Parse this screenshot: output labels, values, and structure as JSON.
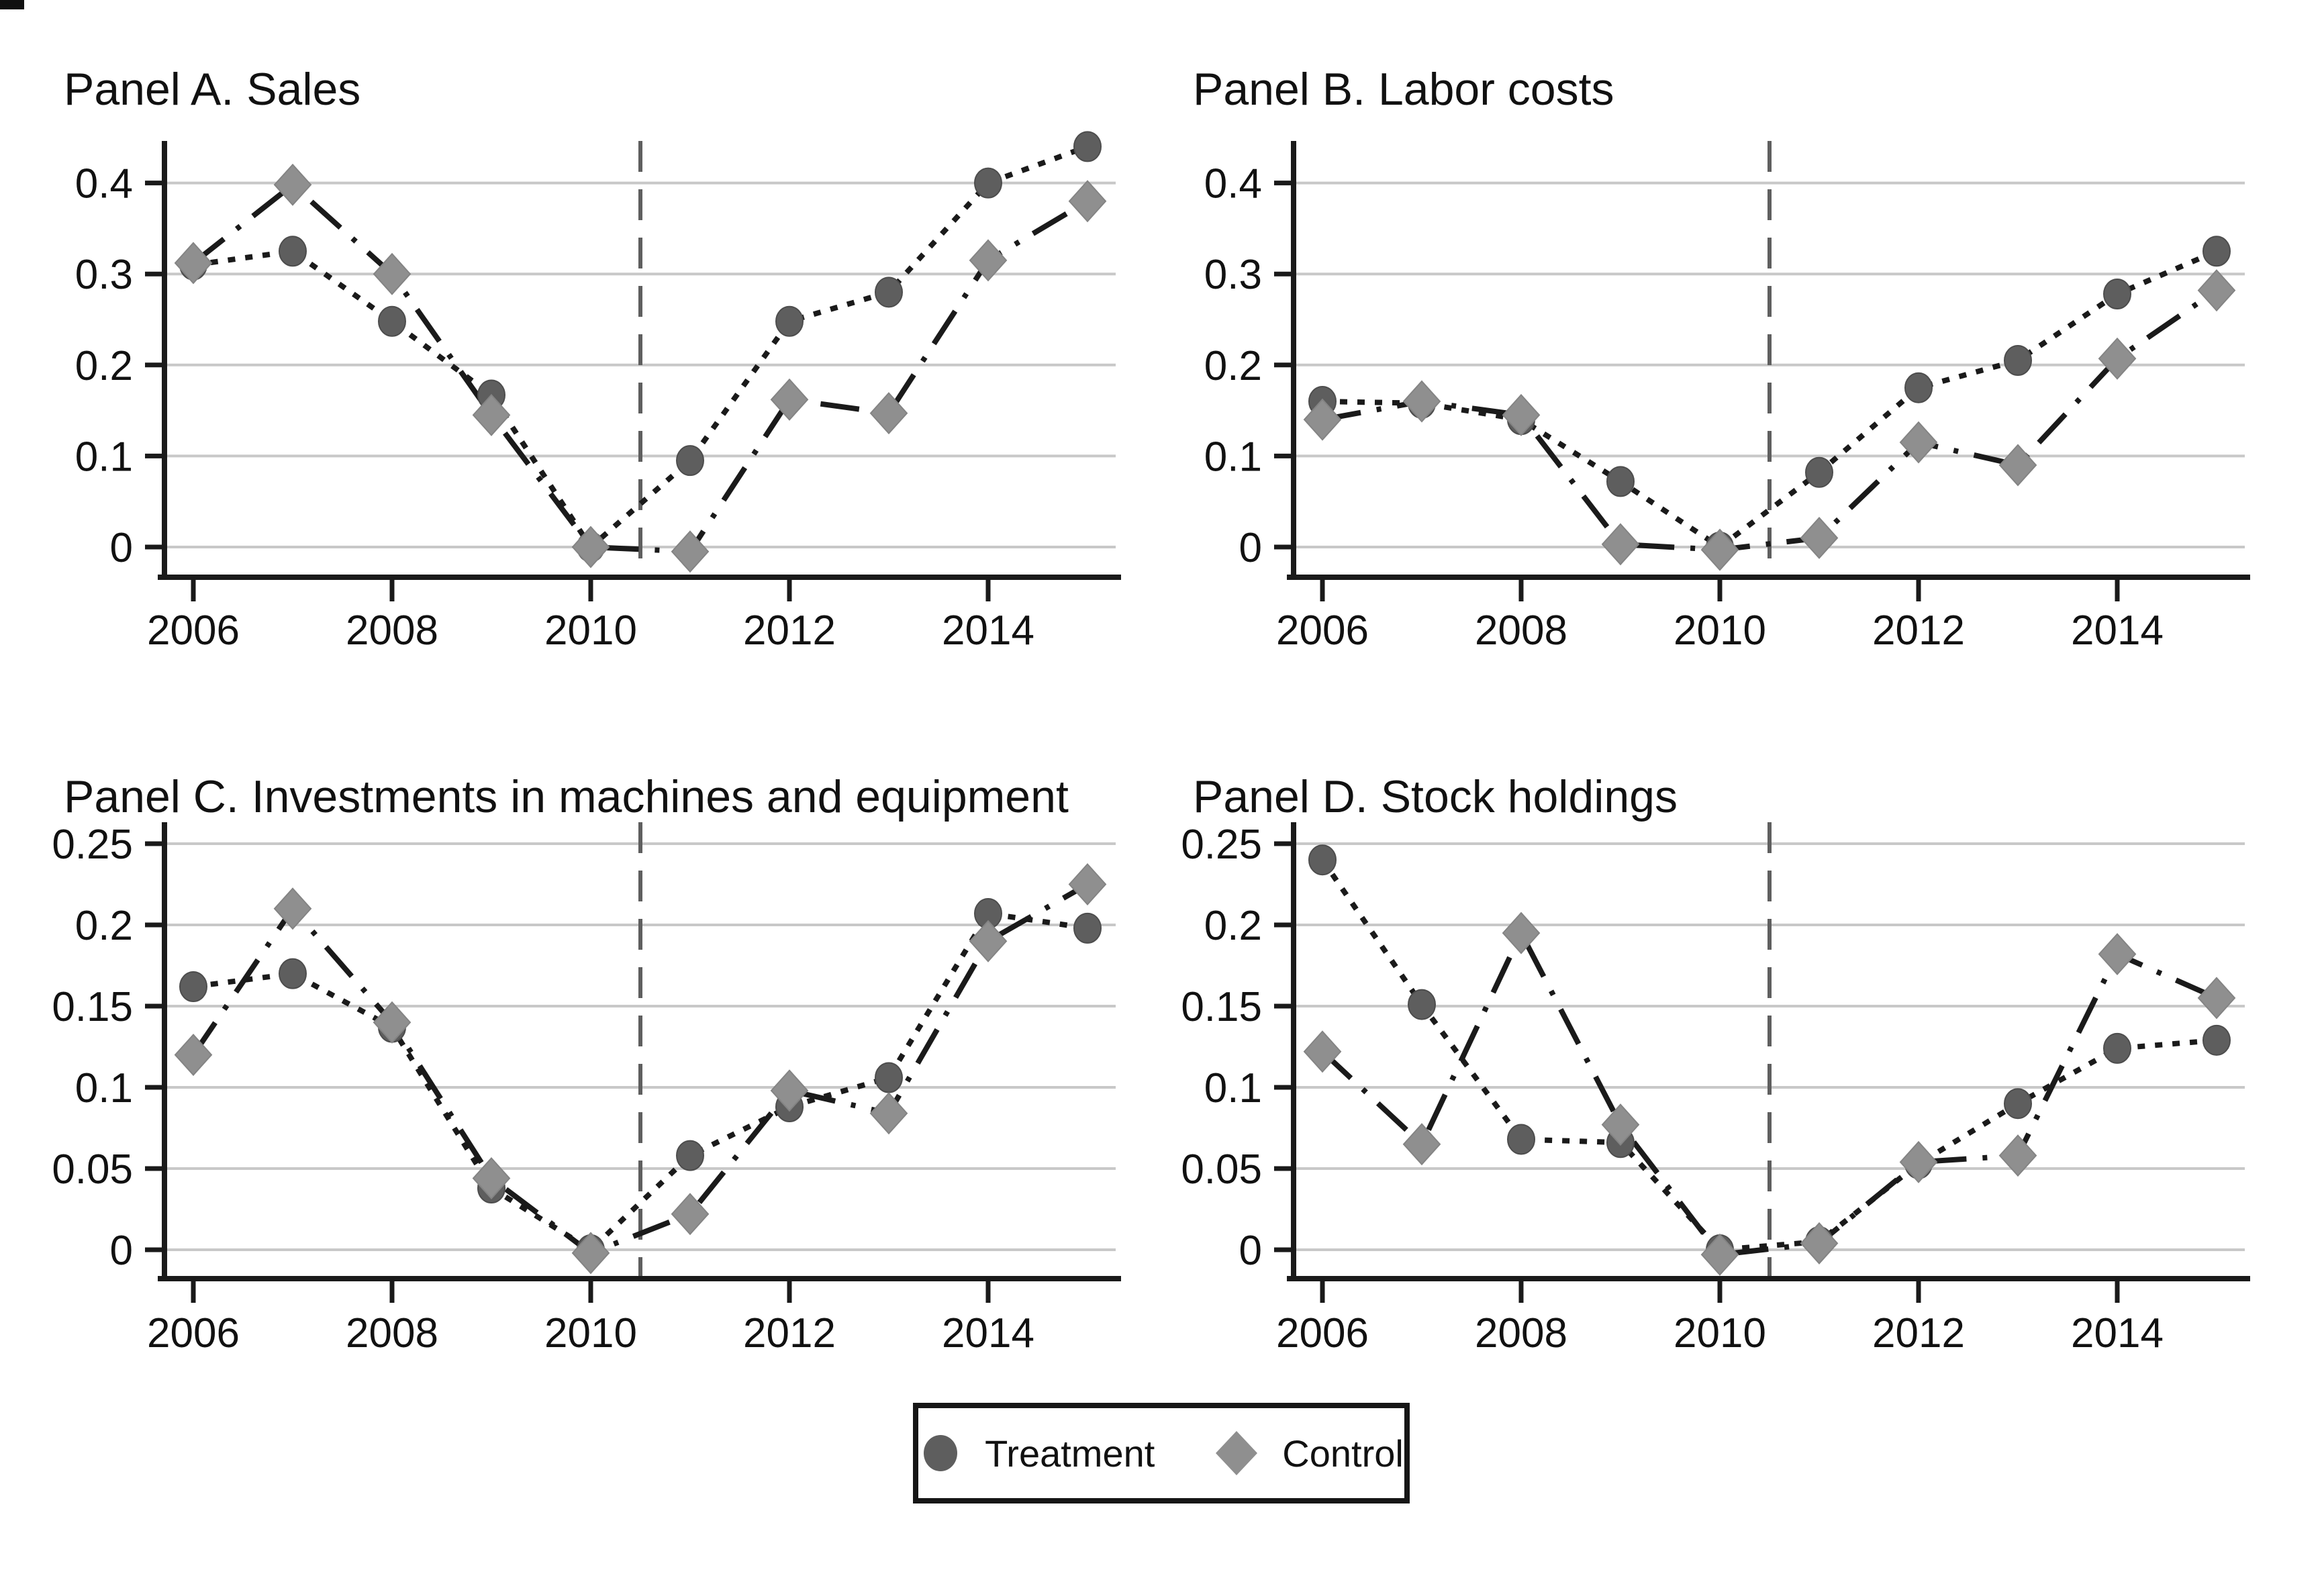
{
  "chart_data": [
    {
      "type": "line",
      "title": "Panel A. Sales",
      "x": [
        2006,
        2007,
        2008,
        2009,
        2010,
        2011,
        2012,
        2013,
        2014,
        2015
      ],
      "series": [
        {
          "name": "Treatment",
          "marker": "circle",
          "line": "dotted",
          "values": [
            0.31,
            0.325,
            0.248,
            0.167,
            0.0,
            0.095,
            0.248,
            0.28,
            0.4,
            0.44
          ]
        },
        {
          "name": "Control",
          "marker": "diamond",
          "line": "dashdot",
          "values": [
            0.312,
            0.398,
            0.3,
            0.145,
            0.0,
            -0.005,
            0.162,
            0.147,
            0.315,
            0.38
          ]
        }
      ],
      "ylim": [
        -0.033,
        0.446
      ],
      "yticks": [
        0,
        0.1,
        0.2,
        0.3,
        0.4
      ],
      "ytick_labels": [
        "0",
        "0.1",
        "0.2",
        "0.3",
        "0.4"
      ],
      "xticks": [
        2006,
        2008,
        2010,
        2012,
        2014
      ],
      "xtick_labels": [
        "2006",
        "2008",
        "2010",
        "2012",
        "2014"
      ],
      "vline_x": 2010.5,
      "grid": "horizontal"
    },
    {
      "type": "line",
      "title": "Panel B. Labor costs",
      "x": [
        2006,
        2007,
        2008,
        2009,
        2010,
        2011,
        2012,
        2013,
        2014,
        2015
      ],
      "series": [
        {
          "name": "Treatment",
          "marker": "circle",
          "line": "dotted",
          "values": [
            0.16,
            0.158,
            0.14,
            0.072,
            0.0,
            0.082,
            0.175,
            0.205,
            0.278,
            0.325
          ]
        },
        {
          "name": "Control",
          "marker": "diamond",
          "line": "dashdot",
          "values": [
            0.14,
            0.16,
            0.145,
            0.003,
            -0.003,
            0.01,
            0.115,
            0.09,
            0.207,
            0.282
          ]
        }
      ],
      "ylim": [
        -0.033,
        0.446
      ],
      "yticks": [
        0,
        0.1,
        0.2,
        0.3,
        0.4
      ],
      "ytick_labels": [
        "0",
        "0.1",
        "0.2",
        "0.3",
        "0.4"
      ],
      "xticks": [
        2006,
        2008,
        2010,
        2012,
        2014
      ],
      "xtick_labels": [
        "2006",
        "2008",
        "2010",
        "2012",
        "2014"
      ],
      "vline_x": 2010.5,
      "grid": "horizontal"
    },
    {
      "type": "line",
      "title": "Panel C. Investments in machines and equipment",
      "x": [
        2006,
        2007,
        2008,
        2009,
        2010,
        2011,
        2012,
        2013,
        2014,
        2015
      ],
      "series": [
        {
          "name": "Treatment",
          "marker": "circle",
          "line": "dotted",
          "values": [
            0.162,
            0.17,
            0.137,
            0.038,
            0.0,
            0.058,
            0.088,
            0.106,
            0.207,
            0.198
          ]
        },
        {
          "name": "Control",
          "marker": "diamond",
          "line": "dashdot",
          "values": [
            0.12,
            0.21,
            0.14,
            0.044,
            -0.002,
            0.022,
            0.098,
            0.084,
            0.19,
            0.225
          ]
        }
      ],
      "ylim": [
        -0.018,
        0.263
      ],
      "yticks": [
        0,
        0.05,
        0.1,
        0.15,
        0.2,
        0.25
      ],
      "ytick_labels": [
        "0",
        "0.05",
        "0.1",
        "0.15",
        "0.2",
        "0.25"
      ],
      "xticks": [
        2006,
        2008,
        2010,
        2012,
        2014
      ],
      "xtick_labels": [
        "2006",
        "2008",
        "2010",
        "2012",
        "2014"
      ],
      "vline_x": 2010.5,
      "grid": "horizontal"
    },
    {
      "type": "line",
      "title": "Panel D. Stock holdings",
      "x": [
        2006,
        2007,
        2008,
        2009,
        2010,
        2011,
        2012,
        2013,
        2014,
        2015
      ],
      "series": [
        {
          "name": "Treatment",
          "marker": "circle",
          "line": "dotted",
          "values": [
            0.24,
            0.151,
            0.068,
            0.066,
            0.0,
            0.005,
            0.053,
            0.09,
            0.124,
            0.129
          ]
        },
        {
          "name": "Control",
          "marker": "diamond",
          "line": "dashdot",
          "values": [
            0.122,
            0.065,
            0.195,
            0.077,
            -0.003,
            0.004,
            0.054,
            0.058,
            0.182,
            0.155
          ]
        }
      ],
      "ylim": [
        -0.018,
        0.263
      ],
      "yticks": [
        0,
        0.05,
        0.1,
        0.15,
        0.2,
        0.25
      ],
      "ytick_labels": [
        "0",
        "0.05",
        "0.1",
        "0.15",
        "0.2",
        "0.25"
      ],
      "xticks": [
        2006,
        2008,
        2010,
        2012,
        2014
      ],
      "xtick_labels": [
        "2006",
        "2008",
        "2010",
        "2012",
        "2014"
      ],
      "vline_x": 2010.5,
      "grid": "horizontal"
    }
  ],
  "legend": {
    "items": [
      {
        "label": "Treatment",
        "marker": "circle"
      },
      {
        "label": "Control",
        "marker": "diamond"
      }
    ]
  },
  "colors": {
    "treatment_marker": "#5e5e5e",
    "control_marker": "#8f8f8f",
    "line": "#1a1a1a",
    "grid": "#c8c8c8",
    "vline": "#5f5f5f",
    "axis": "#1a1a1a",
    "text": "#111111"
  }
}
